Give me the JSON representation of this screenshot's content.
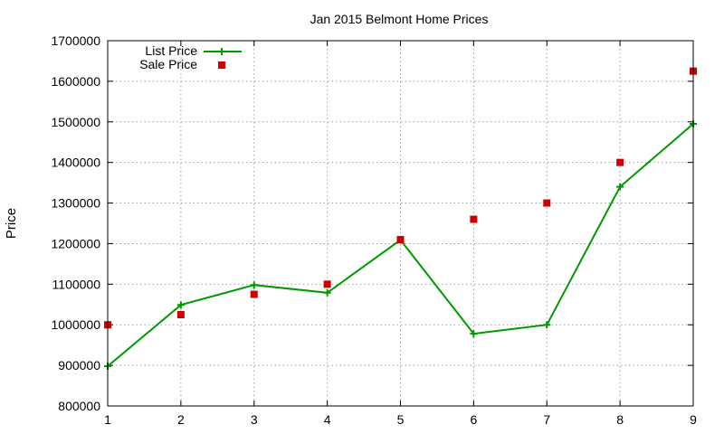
{
  "chart_data": {
    "type": "line",
    "title": "Jan 2015 Belmont Home Prices",
    "xlabel": "",
    "ylabel": "Price",
    "xlim": [
      1,
      9
    ],
    "ylim": [
      800000,
      1700000
    ],
    "x_ticks": [
      "1",
      "2",
      "3",
      "4",
      "5",
      "6",
      "7",
      "8",
      "9"
    ],
    "y_ticks": [
      "800000",
      "900000",
      "1000000",
      "1100000",
      "1200000",
      "1300000",
      "1400000",
      "1500000",
      "1600000",
      "1700000"
    ],
    "grid": true,
    "legend_position": "top-left",
    "series": [
      {
        "name": "List Price",
        "style": "lines+points",
        "color": "#009900",
        "x": [
          1,
          2,
          3,
          4,
          5,
          6,
          7,
          8,
          9
        ],
        "values": [
          898000,
          1049000,
          1098000,
          1079000,
          1209000,
          978000,
          1000000,
          1340000,
          1495000
        ]
      },
      {
        "name": "Sale Price",
        "style": "points",
        "color": "#cc0000",
        "x": [
          1,
          2,
          3,
          4,
          5,
          6,
          7,
          8,
          9
        ],
        "values": [
          1000000,
          1025000,
          1075000,
          1100000,
          1210000,
          1260000,
          1300000,
          1400000,
          1625000
        ]
      }
    ]
  }
}
